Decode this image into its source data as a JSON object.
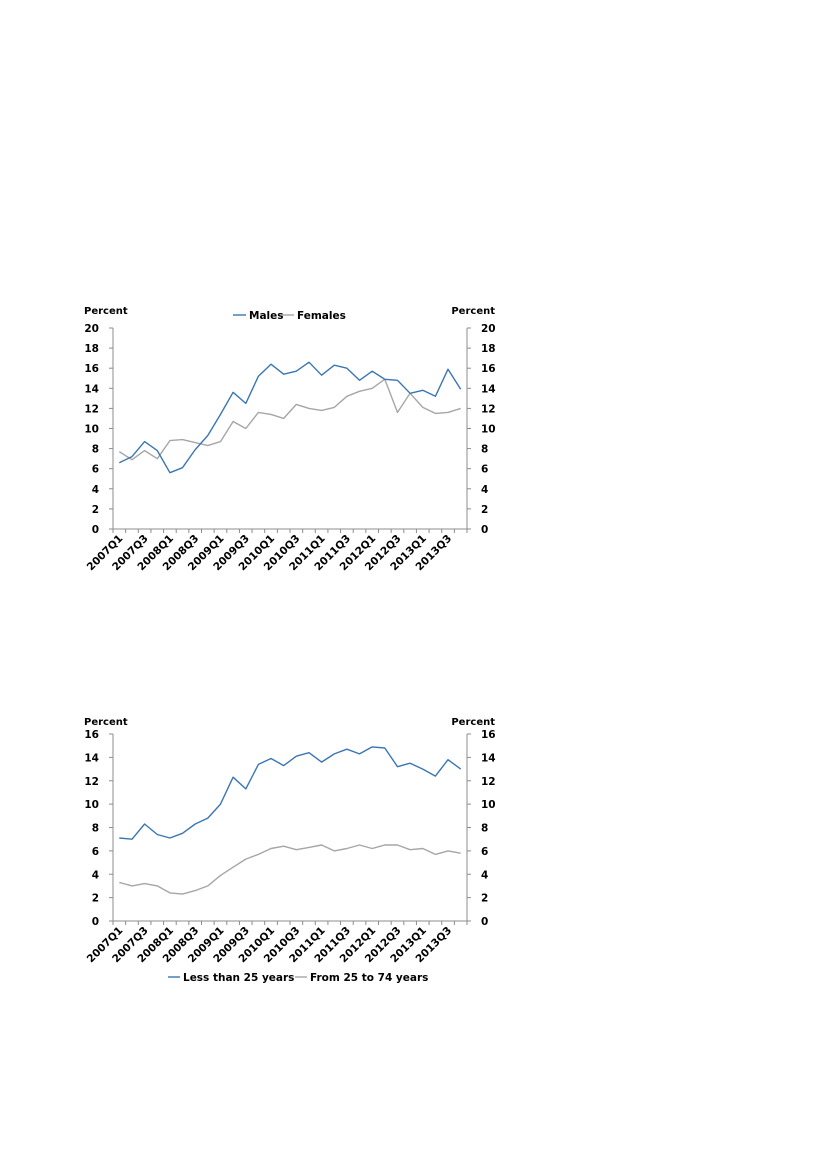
{
  "chart_data": [
    {
      "type": "line",
      "left_unit": "Percent",
      "right_unit": "Percent",
      "ylim": [
        0,
        20
      ],
      "y_ticks": [
        0,
        2,
        4,
        6,
        8,
        10,
        12,
        14,
        16,
        18,
        20
      ],
      "x": [
        "2007Q1",
        "2007Q2",
        "2007Q3",
        "2007Q4",
        "2008Q1",
        "2008Q2",
        "2008Q3",
        "2008Q4",
        "2009Q1",
        "2009Q2",
        "2009Q3",
        "2009Q4",
        "2010Q1",
        "2010Q2",
        "2010Q3",
        "2010Q4",
        "2011Q1",
        "2011Q2",
        "2011Q3",
        "2011Q4",
        "2012Q1",
        "2012Q2",
        "2012Q3",
        "2012Q4",
        "2013Q1",
        "2013Q2",
        "2013Q3",
        "2013Q4"
      ],
      "x_tick_labels": [
        "2007Q1",
        "2007Q3",
        "2008Q1",
        "2008Q3",
        "2009Q1",
        "2009Q3",
        "2010Q1",
        "2010Q3",
        "2011Q1",
        "2011Q3",
        "2012Q1",
        "2012Q3",
        "2013Q1",
        "2013Q3"
      ],
      "legend_position": "top",
      "grid": false,
      "series": [
        {
          "name": "Males",
          "color": "#3a76b4",
          "values": [
            6.6,
            7.2,
            8.7,
            7.8,
            5.6,
            6.1,
            7.9,
            9.3,
            11.4,
            13.6,
            12.5,
            15.2,
            16.4,
            15.4,
            15.7,
            16.6,
            15.3,
            16.3,
            16.0,
            14.8,
            15.7,
            14.9,
            14.8,
            13.5,
            13.8,
            13.2,
            15.9,
            13.9
          ]
        },
        {
          "name": "Females",
          "color": "#a6a6a6",
          "values": [
            7.7,
            6.9,
            7.8,
            7.0,
            8.8,
            8.9,
            8.6,
            8.3,
            8.7,
            10.7,
            10.0,
            11.6,
            11.4,
            11.0,
            12.4,
            12.0,
            11.8,
            12.1,
            13.2,
            13.7,
            14.0,
            14.9,
            11.6,
            13.5,
            12.1,
            11.5,
            11.6,
            12.0
          ]
        }
      ]
    },
    {
      "type": "line",
      "left_unit": "Percent",
      "right_unit": "Percent",
      "ylim": [
        0,
        16
      ],
      "y_ticks": [
        0,
        2,
        4,
        6,
        8,
        10,
        12,
        14,
        16
      ],
      "x": [
        "2007Q1",
        "2007Q2",
        "2007Q3",
        "2007Q4",
        "2008Q1",
        "2008Q2",
        "2008Q3",
        "2008Q4",
        "2009Q1",
        "2009Q2",
        "2009Q3",
        "2009Q4",
        "2010Q1",
        "2010Q2",
        "2010Q3",
        "2010Q4",
        "2011Q1",
        "2011Q2",
        "2011Q3",
        "2011Q4",
        "2012Q1",
        "2012Q2",
        "2012Q3",
        "2012Q4",
        "2013Q1",
        "2013Q2",
        "2013Q3",
        "2013Q4"
      ],
      "x_tick_labels": [
        "2007Q1",
        "2007Q3",
        "2008Q1",
        "2008Q3",
        "2009Q1",
        "2009Q3",
        "2010Q1",
        "2010Q3",
        "2011Q1",
        "2011Q3",
        "2012Q1",
        "2012Q3",
        "2013Q1",
        "2013Q3"
      ],
      "legend_position": "bottom",
      "grid": false,
      "series": [
        {
          "name": "Less than 25 years",
          "color": "#3a76b4",
          "values": [
            7.1,
            7.0,
            8.3,
            7.4,
            7.1,
            7.5,
            8.3,
            8.8,
            10.0,
            12.3,
            11.3,
            13.4,
            13.9,
            13.3,
            14.1,
            14.4,
            13.6,
            14.3,
            14.7,
            14.3,
            14.9,
            14.8,
            13.2,
            13.5,
            13.0,
            12.4,
            13.8,
            13.0
          ]
        },
        {
          "name": "From 25 to 74 years",
          "color": "#a6a6a6",
          "values": [
            3.3,
            3.0,
            3.2,
            3.0,
            2.4,
            2.3,
            2.6,
            3.0,
            3.9,
            4.6,
            5.3,
            5.7,
            6.2,
            6.4,
            6.1,
            6.3,
            6.5,
            6.0,
            6.2,
            6.5,
            6.2,
            6.5,
            6.5,
            6.1,
            6.2,
            5.7,
            6.0,
            5.8
          ]
        }
      ]
    }
  ]
}
